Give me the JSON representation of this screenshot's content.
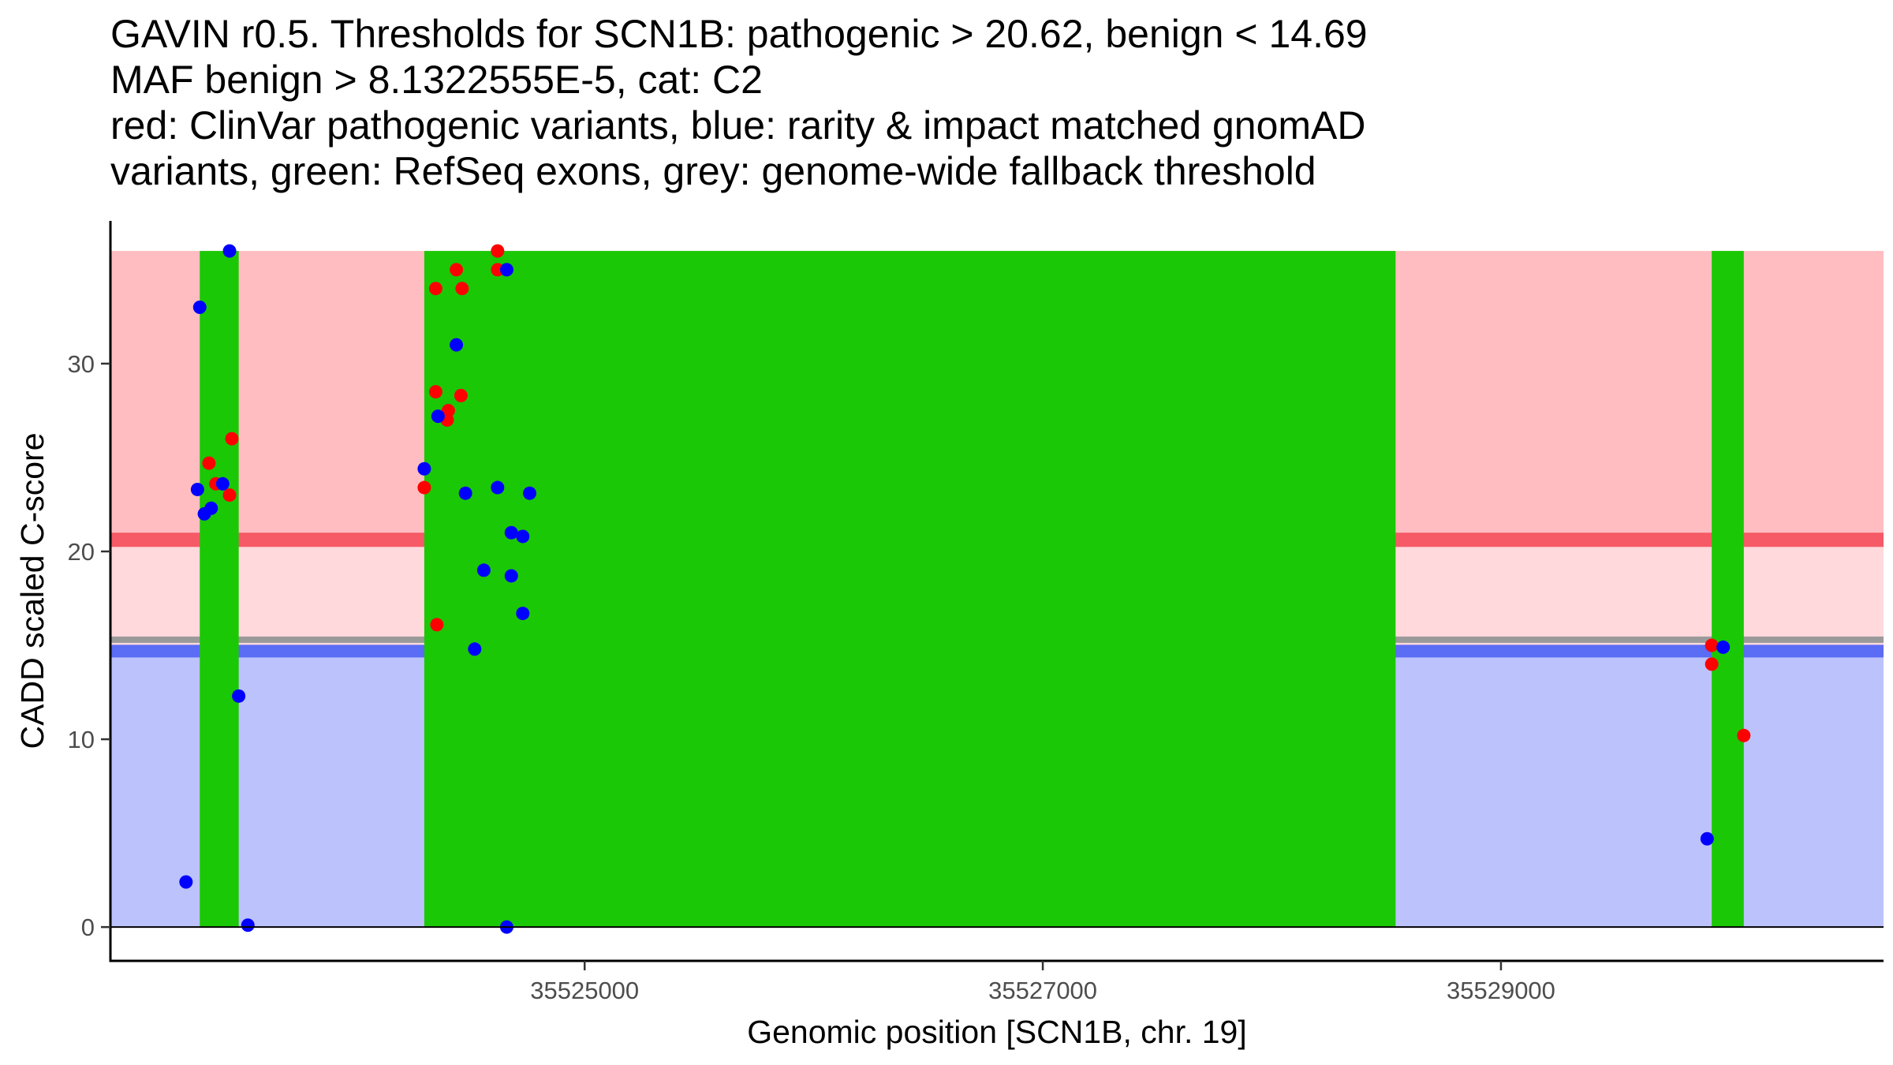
{
  "title_lines": [
    "GAVIN r0.5. Thresholds for SCN1B: pathogenic > 20.62, benign < 14.69",
    "MAF benign > 8.1322555E-5, cat: C2",
    "red: ClinVar pathogenic variants, blue: rarity & impact matched gnomAD",
    "variants, green: RefSeq exons, grey: genome-wide fallback threshold"
  ],
  "colors": {
    "pathogenic_region": "#ffbdc1",
    "intermediate_region": "#ffd9dc",
    "benign_region": "#bcc2fb",
    "pathogenic_line": "#f55a66",
    "benign_line": "#5b6cf5",
    "fallback_line": "#9a9a9a",
    "exon": "#1bc805",
    "clinvar": "#ff0000",
    "gnomad": "#0000ff"
  },
  "chart_data": {
    "type": "scatter",
    "xlabel": "Genomic position [SCN1B, chr. 19]",
    "ylabel": "CADD scaled C-score",
    "xlim": [
      35522930,
      35530670
    ],
    "ylim": [
      -1.8,
      37.6
    ],
    "x_ticks": [
      35525000,
      35527000,
      35529000
    ],
    "x_tick_labels": [
      "35525000",
      "35527000",
      "35529000"
    ],
    "y_ticks": [
      0,
      10,
      20,
      30
    ],
    "y_tick_labels": [
      "0",
      "10",
      "20",
      "30"
    ],
    "grid": false,
    "thresholds": {
      "pathogenic": 20.62,
      "benign": 14.69,
      "fallback": 15.3,
      "ymax": 36
    },
    "exons": [
      [
        35523320,
        35523490
      ],
      [
        35524300,
        35528540
      ],
      [
        35529920,
        35530060
      ]
    ],
    "series": [
      {
        "name": "ClinVar pathogenic variants",
        "color": "#ff0000",
        "points": [
          [
            35523360,
            24.7
          ],
          [
            35523390,
            23.6
          ],
          [
            35523450,
            23.0
          ],
          [
            35523460,
            26.0
          ],
          [
            35524300,
            23.4
          ],
          [
            35524350,
            34.0
          ],
          [
            35524350,
            28.5
          ],
          [
            35524355,
            16.1
          ],
          [
            35524400,
            27.0
          ],
          [
            35524405,
            27.5
          ],
          [
            35524440,
            35.0
          ],
          [
            35524460,
            28.3
          ],
          [
            35524465,
            34.0
          ],
          [
            35524620,
            36.0
          ],
          [
            35524620,
            35.0
          ],
          [
            35529920,
            15.0
          ],
          [
            35529920,
            14.0
          ],
          [
            35530060,
            10.2
          ]
        ]
      },
      {
        "name": "gnomAD matched variants",
        "color": "#0000ff",
        "points": [
          [
            35523260,
            2.4
          ],
          [
            35523310,
            23.3
          ],
          [
            35523320,
            33.0
          ],
          [
            35523340,
            22.0
          ],
          [
            35523370,
            22.3
          ],
          [
            35523420,
            23.6
          ],
          [
            35523450,
            36.0
          ],
          [
            35523490,
            12.3
          ],
          [
            35523530,
            0.1
          ],
          [
            35524300,
            24.4
          ],
          [
            35524360,
            27.2
          ],
          [
            35524440,
            31.0
          ],
          [
            35524480,
            23.1
          ],
          [
            35524520,
            14.8
          ],
          [
            35524560,
            19.0
          ],
          [
            35524620,
            23.4
          ],
          [
            35524660,
            35.0
          ],
          [
            35524660,
            0.0
          ],
          [
            35524680,
            21.0
          ],
          [
            35524680,
            18.7
          ],
          [
            35524730,
            16.7
          ],
          [
            35524730,
            20.8
          ],
          [
            35524760,
            23.1
          ],
          [
            35529900,
            4.7
          ],
          [
            35529970,
            14.9
          ]
        ]
      }
    ]
  }
}
